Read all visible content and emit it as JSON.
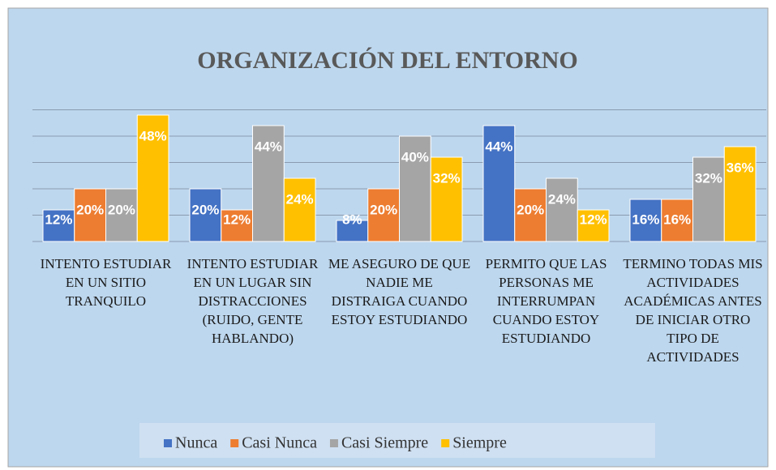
{
  "chart_data": {
    "type": "bar",
    "title": "ORGANIZACIÓN DEL ENTORNO",
    "categories": [
      "INTENTO ESTUDIAR EN UN SITIO TRANQUILO",
      "INTENTO ESTUDIAR EN UN LUGAR SIN DISTRACCIONES (RUIDO, GENTE HABLANDO)",
      "ME ASEGURO DE QUE NADIE ME DISTRAIGA CUANDO ESTOY ESTUDIANDO",
      "PERMITO QUE LAS PERSONAS ME INTERRUMPAN CUANDO ESTOY ESTUDIANDO",
      "TERMINO TODAS MIS ACTIVIDADES ACADÉMICAS ANTES DE INICIAR OTRO TIPO DE ACTIVIDADES"
    ],
    "series": [
      {
        "name": "Nunca",
        "color": "#4472c4",
        "values": [
          12,
          20,
          8,
          44,
          16
        ],
        "value_labels": [
          "12%",
          "20%",
          "8%",
          "44%",
          "16%"
        ]
      },
      {
        "name": "Casi Nunca",
        "color": "#ed7d31",
        "values": [
          20,
          12,
          20,
          20,
          16
        ],
        "value_labels": [
          "20%",
          "12%",
          "20%",
          "20%",
          "16%"
        ]
      },
      {
        "name": "Casi Siempre",
        "color": "#a5a5a5",
        "values": [
          20,
          44,
          40,
          24,
          32
        ],
        "value_labels": [
          "20%",
          "44%",
          "40%",
          "24%",
          "32%"
        ]
      },
      {
        "name": "Siempre",
        "color": "#ffc000",
        "values": [
          48,
          24,
          32,
          12,
          36
        ],
        "value_labels": [
          "48%",
          "24%",
          "32%",
          "12%",
          "36%"
        ]
      }
    ],
    "ylim": [
      0,
      50
    ],
    "yticks": [
      0,
      10,
      20,
      30,
      40,
      50
    ],
    "grid": true,
    "legend": "bottom"
  }
}
